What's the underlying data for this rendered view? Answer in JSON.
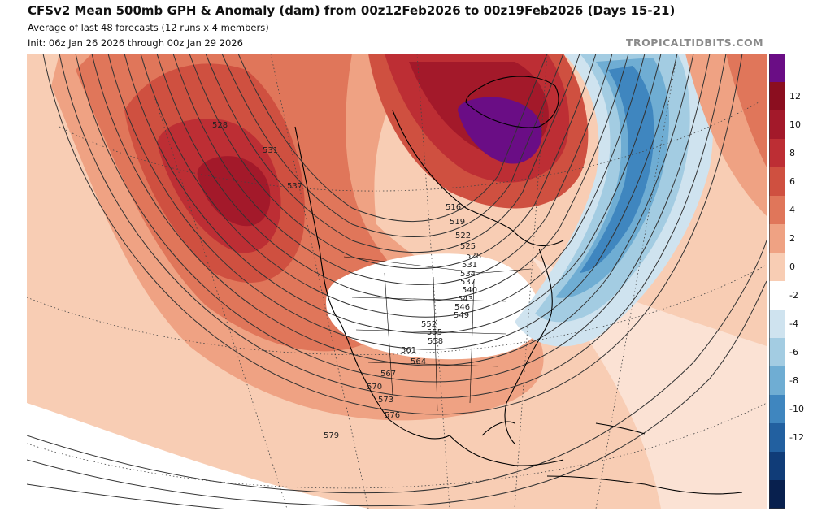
{
  "header": {
    "title": "CFSv2 Mean 500mb GPH & Anomaly (dam) from 00z12Feb2026 to 00z19Feb2026 (Days 15-21)",
    "subtitle": "Average of last 48 forecasts (12 runs x 4 members)",
    "init": "Init: 06z Jan 26 2026 through 00z Jan 29 2026",
    "brand": "TROPICALTIDBITS.COM"
  },
  "colorbar": {
    "labels": [
      "12",
      "10",
      "8",
      "6",
      "4",
      "2",
      "0",
      "-2",
      "-4",
      "-6",
      "-8",
      "-10",
      "-12"
    ],
    "colors": [
      "#6a0d85",
      "#8b0e1f",
      "#a3192a",
      "#bd2e34",
      "#cf5040",
      "#e0765a",
      "#efa283",
      "#f8cdb4",
      "#ffffff",
      "#cfe3ef",
      "#a3cce2",
      "#6fadd3",
      "#3f86bf",
      "#2260a0",
      "#103c78",
      "#08204e"
    ]
  },
  "contours": {
    "labels": [
      "528",
      "531",
      "537",
      "516",
      "519",
      "522",
      "525",
      "528",
      "531",
      "534",
      "537",
      "540",
      "543",
      "546",
      "549",
      "552",
      "555",
      "558",
      "561",
      "564",
      "567",
      "570",
      "573",
      "576",
      "579"
    ]
  }
}
